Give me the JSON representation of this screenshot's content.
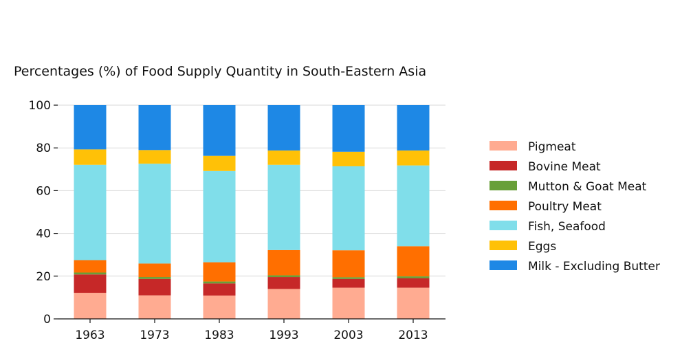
{
  "chart_data": {
    "type": "bar",
    "stacked": true,
    "title": "Percentages (%) of Food Supply Quantity in South-Eastern Asia",
    "xlabel": "",
    "ylabel": "",
    "categories": [
      "1963",
      "1973",
      "1983",
      "1993",
      "2003",
      "2013"
    ],
    "ylim": [
      0,
      100
    ],
    "yticks": [
      "0",
      "20",
      "40",
      "60",
      "80",
      "100"
    ],
    "grid": "horizontal",
    "legend_position": "right",
    "series": [
      {
        "name": "Pigmeat",
        "color": "#FFAB91",
        "values": [
          12.2,
          11.0,
          10.9,
          14.0,
          14.6,
          14.6
        ]
      },
      {
        "name": "Bovine Meat",
        "color": "#C62828",
        "values": [
          8.6,
          7.7,
          5.7,
          5.6,
          4.1,
          4.4
        ]
      },
      {
        "name": "Mutton & Goat Meat",
        "color": "#689F38",
        "values": [
          0.9,
          0.9,
          0.9,
          0.8,
          0.8,
          0.9
        ]
      },
      {
        "name": "Poultry Meat",
        "color": "#FF6F00",
        "values": [
          5.8,
          6.3,
          9.0,
          11.8,
          12.6,
          14.1
        ]
      },
      {
        "name": "Fish, Seafood",
        "color": "#80DEEA",
        "values": [
          44.6,
          46.7,
          42.7,
          39.9,
          39.3,
          37.8
        ]
      },
      {
        "name": "Eggs",
        "color": "#FFC107",
        "values": [
          7.2,
          6.4,
          7.1,
          6.7,
          6.8,
          7.0
        ]
      },
      {
        "name": "Milk - Excluding Butter",
        "color": "#1E88E5",
        "values": [
          20.7,
          21.0,
          23.7,
          21.2,
          21.8,
          21.2
        ]
      }
    ]
  }
}
